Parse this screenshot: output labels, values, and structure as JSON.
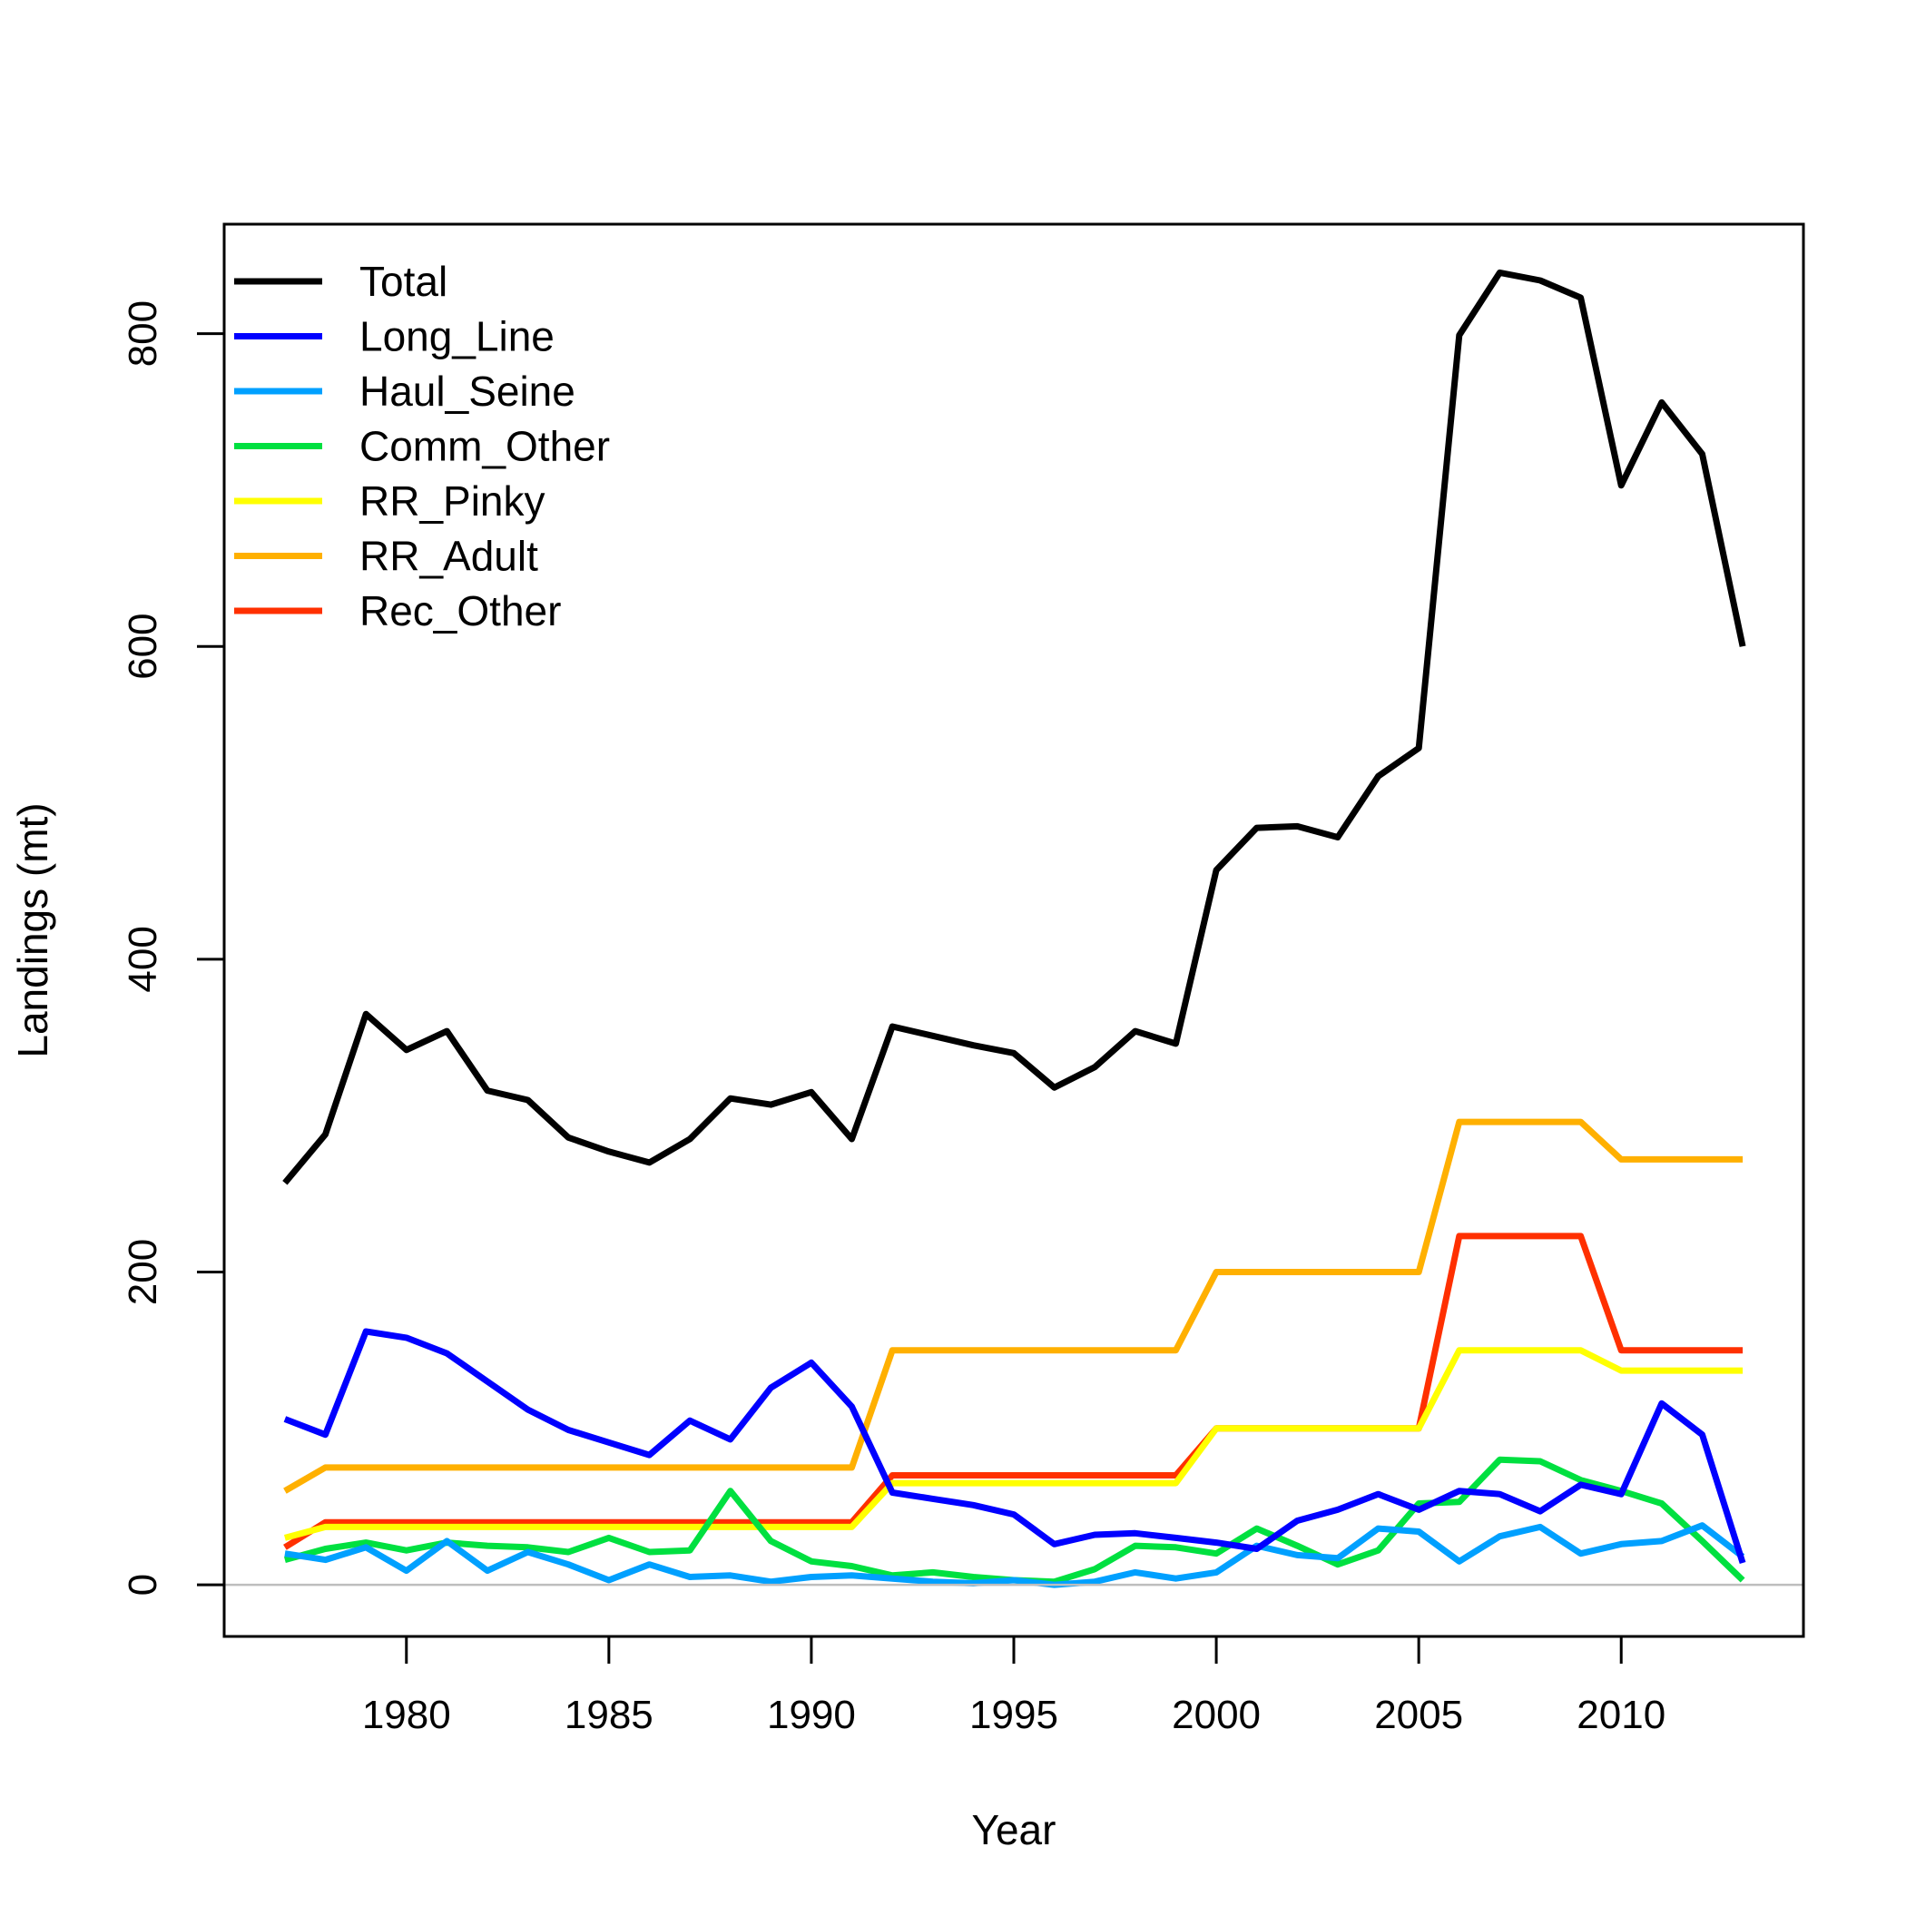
{
  "chart_data": {
    "type": "line",
    "title": "",
    "xlabel": "Year",
    "ylabel": "Landings (mt)",
    "xlim": [
      1975.5,
      2014.5
    ],
    "ylim": [
      -33,
      870
    ],
    "x_ticks": [
      1980,
      1985,
      1990,
      1995,
      2000,
      2005,
      2010
    ],
    "y_ticks": [
      0,
      200,
      400,
      600,
      800
    ],
    "x_tick_labels": [
      "1980",
      "1985",
      "1990",
      "1995",
      "2000",
      "2005",
      "2010"
    ],
    "y_tick_labels": [
      "0",
      "200",
      "400",
      "600",
      "800"
    ],
    "reference_line": {
      "y": 0,
      "color": "#bebebe"
    },
    "grid": false,
    "legend_position": "top-left",
    "x": [
      1977,
      1978,
      1979,
      1980,
      1981,
      1982,
      1983,
      1984,
      1985,
      1986,
      1987,
      1988,
      1989,
      1990,
      1991,
      1992,
      1993,
      1994,
      1995,
      1996,
      1997,
      1998,
      1999,
      2000,
      2001,
      2002,
      2003,
      2004,
      2005,
      2006,
      2007,
      2008,
      2009,
      2010,
      2011,
      2012,
      2013
    ],
    "series": [
      {
        "name": "Total",
        "color": "#000000",
        "values": [
          257,
          288,
          365,
          342,
          354,
          316,
          310,
          286,
          277,
          270,
          285,
          311,
          307,
          315,
          285,
          357,
          351,
          345,
          340,
          318,
          331,
          354,
          346,
          457,
          484,
          485,
          478,
          517,
          535,
          799,
          839,
          834,
          823,
          703,
          756,
          723,
          600
        ]
      },
      {
        "name": "Long_Line",
        "color": "#0000ff",
        "values": [
          106,
          96,
          162,
          158,
          148,
          130,
          112,
          99,
          91,
          83,
          105,
          93,
          126,
          142,
          114,
          59,
          55,
          51,
          45,
          26,
          32,
          33,
          30,
          27,
          23,
          41,
          48,
          58,
          48,
          60,
          58,
          47,
          64,
          58,
          116,
          96,
          14
        ]
      },
      {
        "name": "Haul_Seine",
        "color": "#00a0ff",
        "values": [
          20,
          16,
          24,
          9,
          28,
          9,
          21,
          13,
          3,
          13,
          5,
          6,
          2,
          5,
          6,
          4,
          2,
          1,
          3,
          0,
          2,
          8,
          4,
          8,
          25,
          19,
          17,
          36,
          34,
          15,
          31,
          37,
          20,
          26,
          28,
          38,
          18
        ]
      },
      {
        "name": "Comm_Other",
        "color": "#00e040",
        "values": [
          16,
          23,
          27,
          22,
          27,
          25,
          24,
          21,
          30,
          21,
          22,
          60,
          28,
          15,
          12,
          6,
          8,
          5,
          3,
          2,
          10,
          25,
          24,
          20,
          36,
          25,
          13,
          22,
          52,
          53,
          80,
          79,
          67,
          60,
          52,
          28,
          3
        ]
      },
      {
        "name": "RR_Pinky",
        "color": "#ffff00",
        "values": [
          30,
          37,
          37,
          37,
          37,
          37,
          37,
          37,
          37,
          37,
          37,
          37,
          37,
          37,
          37,
          65,
          65,
          65,
          65,
          65,
          65,
          65,
          65,
          100,
          100,
          100,
          100,
          100,
          100,
          150,
          150,
          150,
          150,
          137,
          137,
          137,
          137
        ]
      },
      {
        "name": "RR_Adult",
        "color": "#ffb000",
        "values": [
          60,
          75,
          75,
          75,
          75,
          75,
          75,
          75,
          75,
          75,
          75,
          75,
          75,
          75,
          75,
          150,
          150,
          150,
          150,
          150,
          150,
          150,
          150,
          200,
          200,
          200,
          200,
          200,
          200,
          296,
          296,
          296,
          296,
          272,
          272,
          272,
          272
        ]
      },
      {
        "name": "Rec_Other",
        "color": "#ff3000",
        "values": [
          24,
          40,
          40,
          40,
          40,
          40,
          40,
          40,
          40,
          40,
          40,
          40,
          40,
          40,
          40,
          70,
          70,
          70,
          70,
          70,
          70,
          70,
          70,
          100,
          100,
          100,
          100,
          100,
          100,
          223,
          223,
          223,
          223,
          150,
          150,
          150,
          150
        ]
      }
    ]
  }
}
